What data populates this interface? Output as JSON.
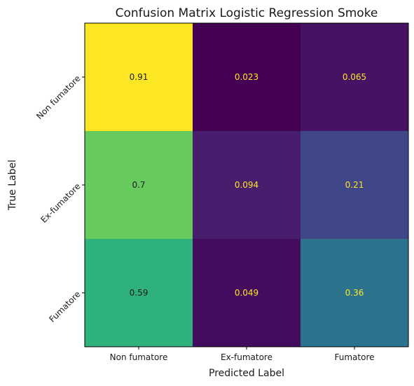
{
  "chart_data": {
    "type": "heatmap",
    "title": "Confusion Matrix Logistic Regression Smoke",
    "xlabel": "Predicted Label",
    "ylabel": "True Label",
    "x_categories": [
      "Non fumatore",
      "Ex-fumatore",
      "Fumatore"
    ],
    "y_categories": [
      "Non fumatore",
      "Ex-fumatore",
      "Fumatore"
    ],
    "values": [
      [
        0.91,
        0.023,
        0.065
      ],
      [
        0.7,
        0.094,
        0.21
      ],
      [
        0.59,
        0.049,
        0.36
      ]
    ],
    "value_labels": [
      [
        "0.91",
        "0.023",
        "0.065"
      ],
      [
        "0.7",
        "0.094",
        "0.21"
      ],
      [
        "0.59",
        "0.049",
        "0.36"
      ]
    ],
    "colormap": "viridis",
    "colorbar": false,
    "grid": false
  }
}
